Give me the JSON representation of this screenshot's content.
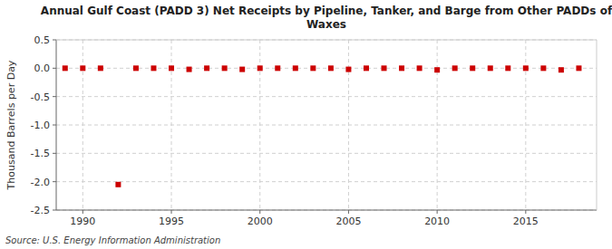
{
  "chart_data": {
    "type": "scatter",
    "title": "Annual Gulf Coast (PADD 3) Net Receipts by Pipeline, Tanker, and Barge from Other PADDs of\nWaxes",
    "y_label": "Thousand Barrels per Day",
    "annotations": [
      "Source: U.S. Energy Information Administration"
    ],
    "x": [
      1989,
      1990,
      1991,
      1992,
      1993,
      1994,
      1995,
      1996,
      1997,
      1998,
      1999,
      2000,
      2001,
      2002,
      2003,
      2004,
      2005,
      2006,
      2007,
      2008,
      2009,
      2010,
      2011,
      2012,
      2013,
      2014,
      2015,
      2016,
      2017,
      2018
    ],
    "values": [
      0.0,
      0.0,
      0.0,
      -2.05,
      0.0,
      0.0,
      0.0,
      -0.02,
      0.0,
      0.0,
      -0.02,
      0.0,
      0.0,
      0.0,
      0.0,
      0.0,
      -0.02,
      0.0,
      0.0,
      0.0,
      0.0,
      -0.03,
      0.0,
      0.0,
      0.0,
      0.0,
      0.0,
      0.0,
      -0.03,
      0.0
    ],
    "color": "#cc0000",
    "marker": "square",
    "xlim": [
      1988.5,
      2019
    ],
    "xticks": [
      1990,
      1995,
      2000,
      2005,
      2010,
      2015
    ],
    "ylim": [
      -2.5,
      0.5
    ],
    "yticks": [
      0.5,
      {
        "value": 0.0,
        "label": "0.0"
      },
      -0.5,
      {
        "value": -1.0,
        "label": "-1.0"
      },
      -1.5,
      {
        "value": -2.0,
        "label": "-2.0"
      },
      -2.5
    ],
    "grid": true
  }
}
